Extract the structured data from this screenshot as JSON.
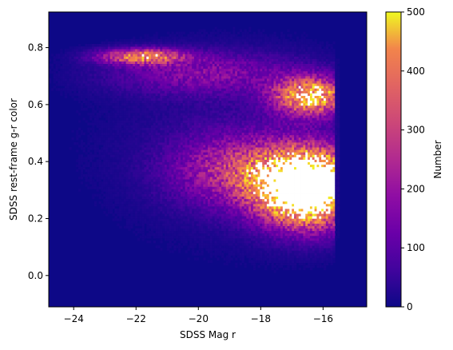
{
  "chart_data": {
    "type": "heatmap",
    "title": "",
    "xlabel": "SDSS Mag r",
    "ylabel": "SDSS rest-frame g-r color",
    "xlim": [
      -24.8,
      -14.6
    ],
    "ylim": [
      -0.11,
      0.925
    ],
    "xticks": [
      -24,
      -22,
      -20,
      -18,
      -16
    ],
    "xtick_labels": [
      "−24",
      "−22",
      "−20",
      "−18",
      "−16"
    ],
    "yticks": [
      0.0,
      0.2,
      0.4,
      0.6,
      0.8
    ],
    "ytick_labels": [
      "0.0",
      "0.2",
      "0.4",
      "0.6",
      "0.8"
    ],
    "colormap": "plasma",
    "colorbar": {
      "label": "Number",
      "range": [
        0,
        500
      ],
      "ticks": [
        0,
        100,
        200,
        300,
        400,
        500
      ],
      "tick_labels": [
        "0",
        "100",
        "200",
        "300",
        "400",
        "500"
      ]
    },
    "grid": false,
    "background_count": 0,
    "density_components": [
      {
        "name": "blue-cloud-core",
        "x_center": -16.5,
        "y_center": 0.31,
        "x_sigma": 1.05,
        "y_sigma": 0.085,
        "peak_count": 900,
        "x_cutoff": -15.65
      },
      {
        "name": "blue-cloud-wing",
        "x_center": -18.7,
        "y_center": 0.37,
        "x_sigma": 1.4,
        "y_sigma": 0.085,
        "peak_count": 220,
        "x_cutoff": -15.65
      },
      {
        "name": "red-sequence-faint",
        "x_center": -16.4,
        "y_center": 0.63,
        "x_sigma": 0.8,
        "y_sigma": 0.045,
        "peak_count": 480,
        "x_cutoff": -15.6
      },
      {
        "name": "red-sequence-bright",
        "x_center": -19.8,
        "y_center": 0.71,
        "x_sigma": 2.0,
        "y_sigma": 0.05,
        "peak_count": 140,
        "x_cutoff": -15.6
      },
      {
        "name": "bright-streak",
        "x_center": -21.8,
        "y_center": 0.77,
        "x_sigma": 0.9,
        "y_sigma": 0.018,
        "peak_count": 380,
        "x_cutoff": -15.6
      },
      {
        "name": "diffuse-halo",
        "x_center": -18.5,
        "y_center": 0.45,
        "x_sigma": 3.0,
        "y_sigma": 0.22,
        "peak_count": 35,
        "x_cutoff": -15.5
      }
    ]
  }
}
